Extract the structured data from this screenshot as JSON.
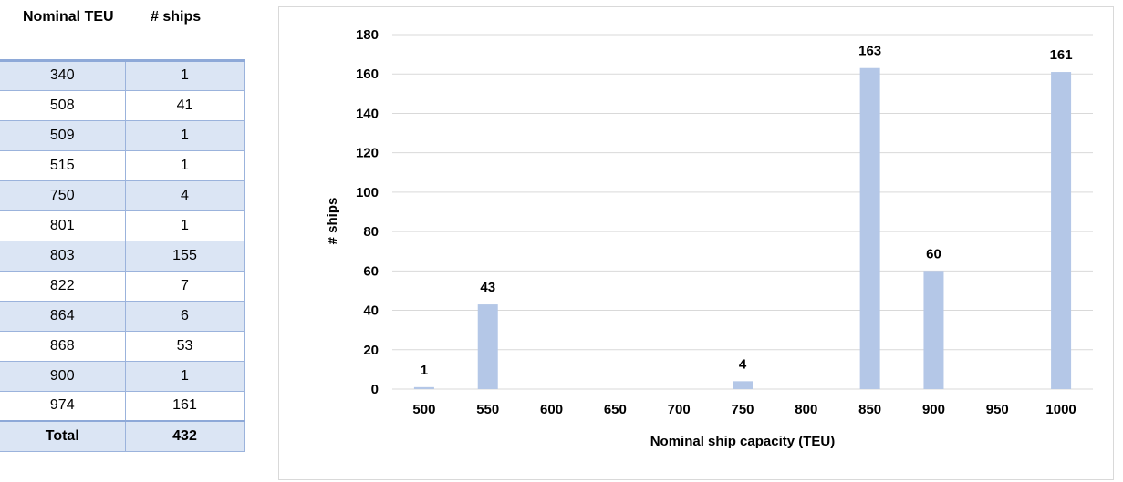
{
  "table": {
    "headers": [
      "Nominal TEU",
      "# ships"
    ],
    "rows": [
      [
        "340",
        "1"
      ],
      [
        "508",
        "41"
      ],
      [
        "509",
        "1"
      ],
      [
        "515",
        "1"
      ],
      [
        "750",
        "4"
      ],
      [
        "801",
        "1"
      ],
      [
        "803",
        "155"
      ],
      [
        "822",
        "7"
      ],
      [
        "864",
        "6"
      ],
      [
        "868",
        "53"
      ],
      [
        "900",
        "1"
      ],
      [
        "974",
        "161"
      ]
    ],
    "total_label": "Total",
    "total_value": "432"
  },
  "chart_data": {
    "type": "bar",
    "categories": [
      "500",
      "550",
      "600",
      "650",
      "700",
      "750",
      "800",
      "850",
      "900",
      "950",
      "1000"
    ],
    "values": [
      1,
      43,
      0,
      0,
      0,
      4,
      0,
      163,
      60,
      0,
      161
    ],
    "data_labels": [
      "1",
      "43",
      "",
      "",
      "",
      "4",
      "",
      "163",
      "",
      "",
      "161"
    ],
    "data_labels_full": [
      "1",
      "43",
      "",
      "",
      "",
      "4",
      "",
      "163",
      "60",
      "",
      "161"
    ],
    "title": "",
    "xlabel": "Nominal ship capacity (TEU)",
    "ylabel": "# ships",
    "ylim": [
      0,
      180
    ],
    "yticks": [
      0,
      20,
      40,
      60,
      80,
      100,
      120,
      140,
      160,
      180
    ],
    "grid": true,
    "legend": "none",
    "bar_color": "#b4c7e7",
    "grid_color": "#d9d9d9"
  }
}
